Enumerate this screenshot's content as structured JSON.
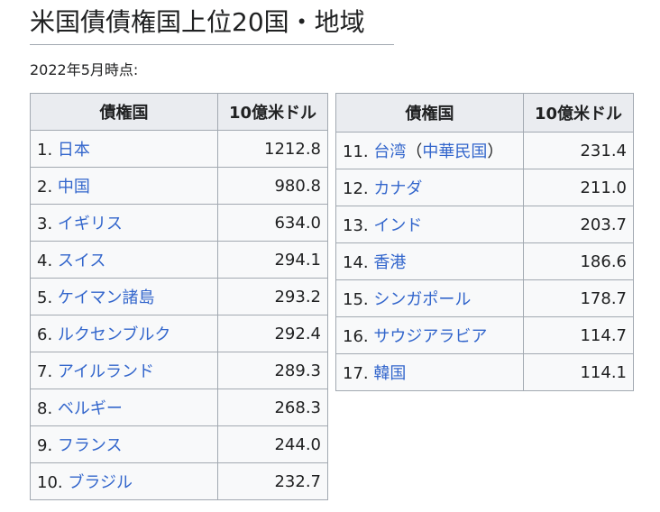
{
  "title": "米国債債権国上位20国・地域",
  "caption": "2022年5月時点:",
  "columns": {
    "country": "債権国",
    "amount": "10億米ドル"
  },
  "left_table": [
    {
      "rank": "1.",
      "country": "日本",
      "amount": "1212.8"
    },
    {
      "rank": "2.",
      "country": "中国",
      "amount": "980.8"
    },
    {
      "rank": "3.",
      "country": "イギリス",
      "amount": "634.0"
    },
    {
      "rank": "4.",
      "country": "スイス",
      "amount": "294.1"
    },
    {
      "rank": "5.",
      "country": "ケイマン諸島",
      "amount": "293.2"
    },
    {
      "rank": "6.",
      "country": "ルクセンブルク",
      "amount": "292.4"
    },
    {
      "rank": "7.",
      "country": "アイルランド",
      "amount": "289.3"
    },
    {
      "rank": "8.",
      "country": "ベルギー",
      "amount": "268.3"
    },
    {
      "rank": "9.",
      "country": "フランス",
      "amount": "244.0"
    },
    {
      "rank": "10.",
      "country": "ブラジル",
      "amount": "232.7"
    }
  ],
  "right_table": [
    {
      "rank": "11.",
      "country": "台湾",
      "country_paren_open": "（",
      "country_extra": "中華民国",
      "country_paren_close": "）",
      "amount": "231.4"
    },
    {
      "rank": "12.",
      "country": "カナダ",
      "amount": "211.0"
    },
    {
      "rank": "13.",
      "country": "インド",
      "amount": "203.7"
    },
    {
      "rank": "14.",
      "country": "香港",
      "amount": "186.6"
    },
    {
      "rank": "15.",
      "country": "シンガポール",
      "amount": "178.7"
    },
    {
      "rank": "16.",
      "country": "サウジアラビア",
      "amount": "114.7"
    },
    {
      "rank": "17.",
      "country": "韓国",
      "amount": "114.1"
    }
  ],
  "colors": {
    "link": "#3366cc",
    "header_bg": "#eaecf0",
    "cell_bg": "#f8f9fa",
    "border": "#a2a9b1"
  }
}
